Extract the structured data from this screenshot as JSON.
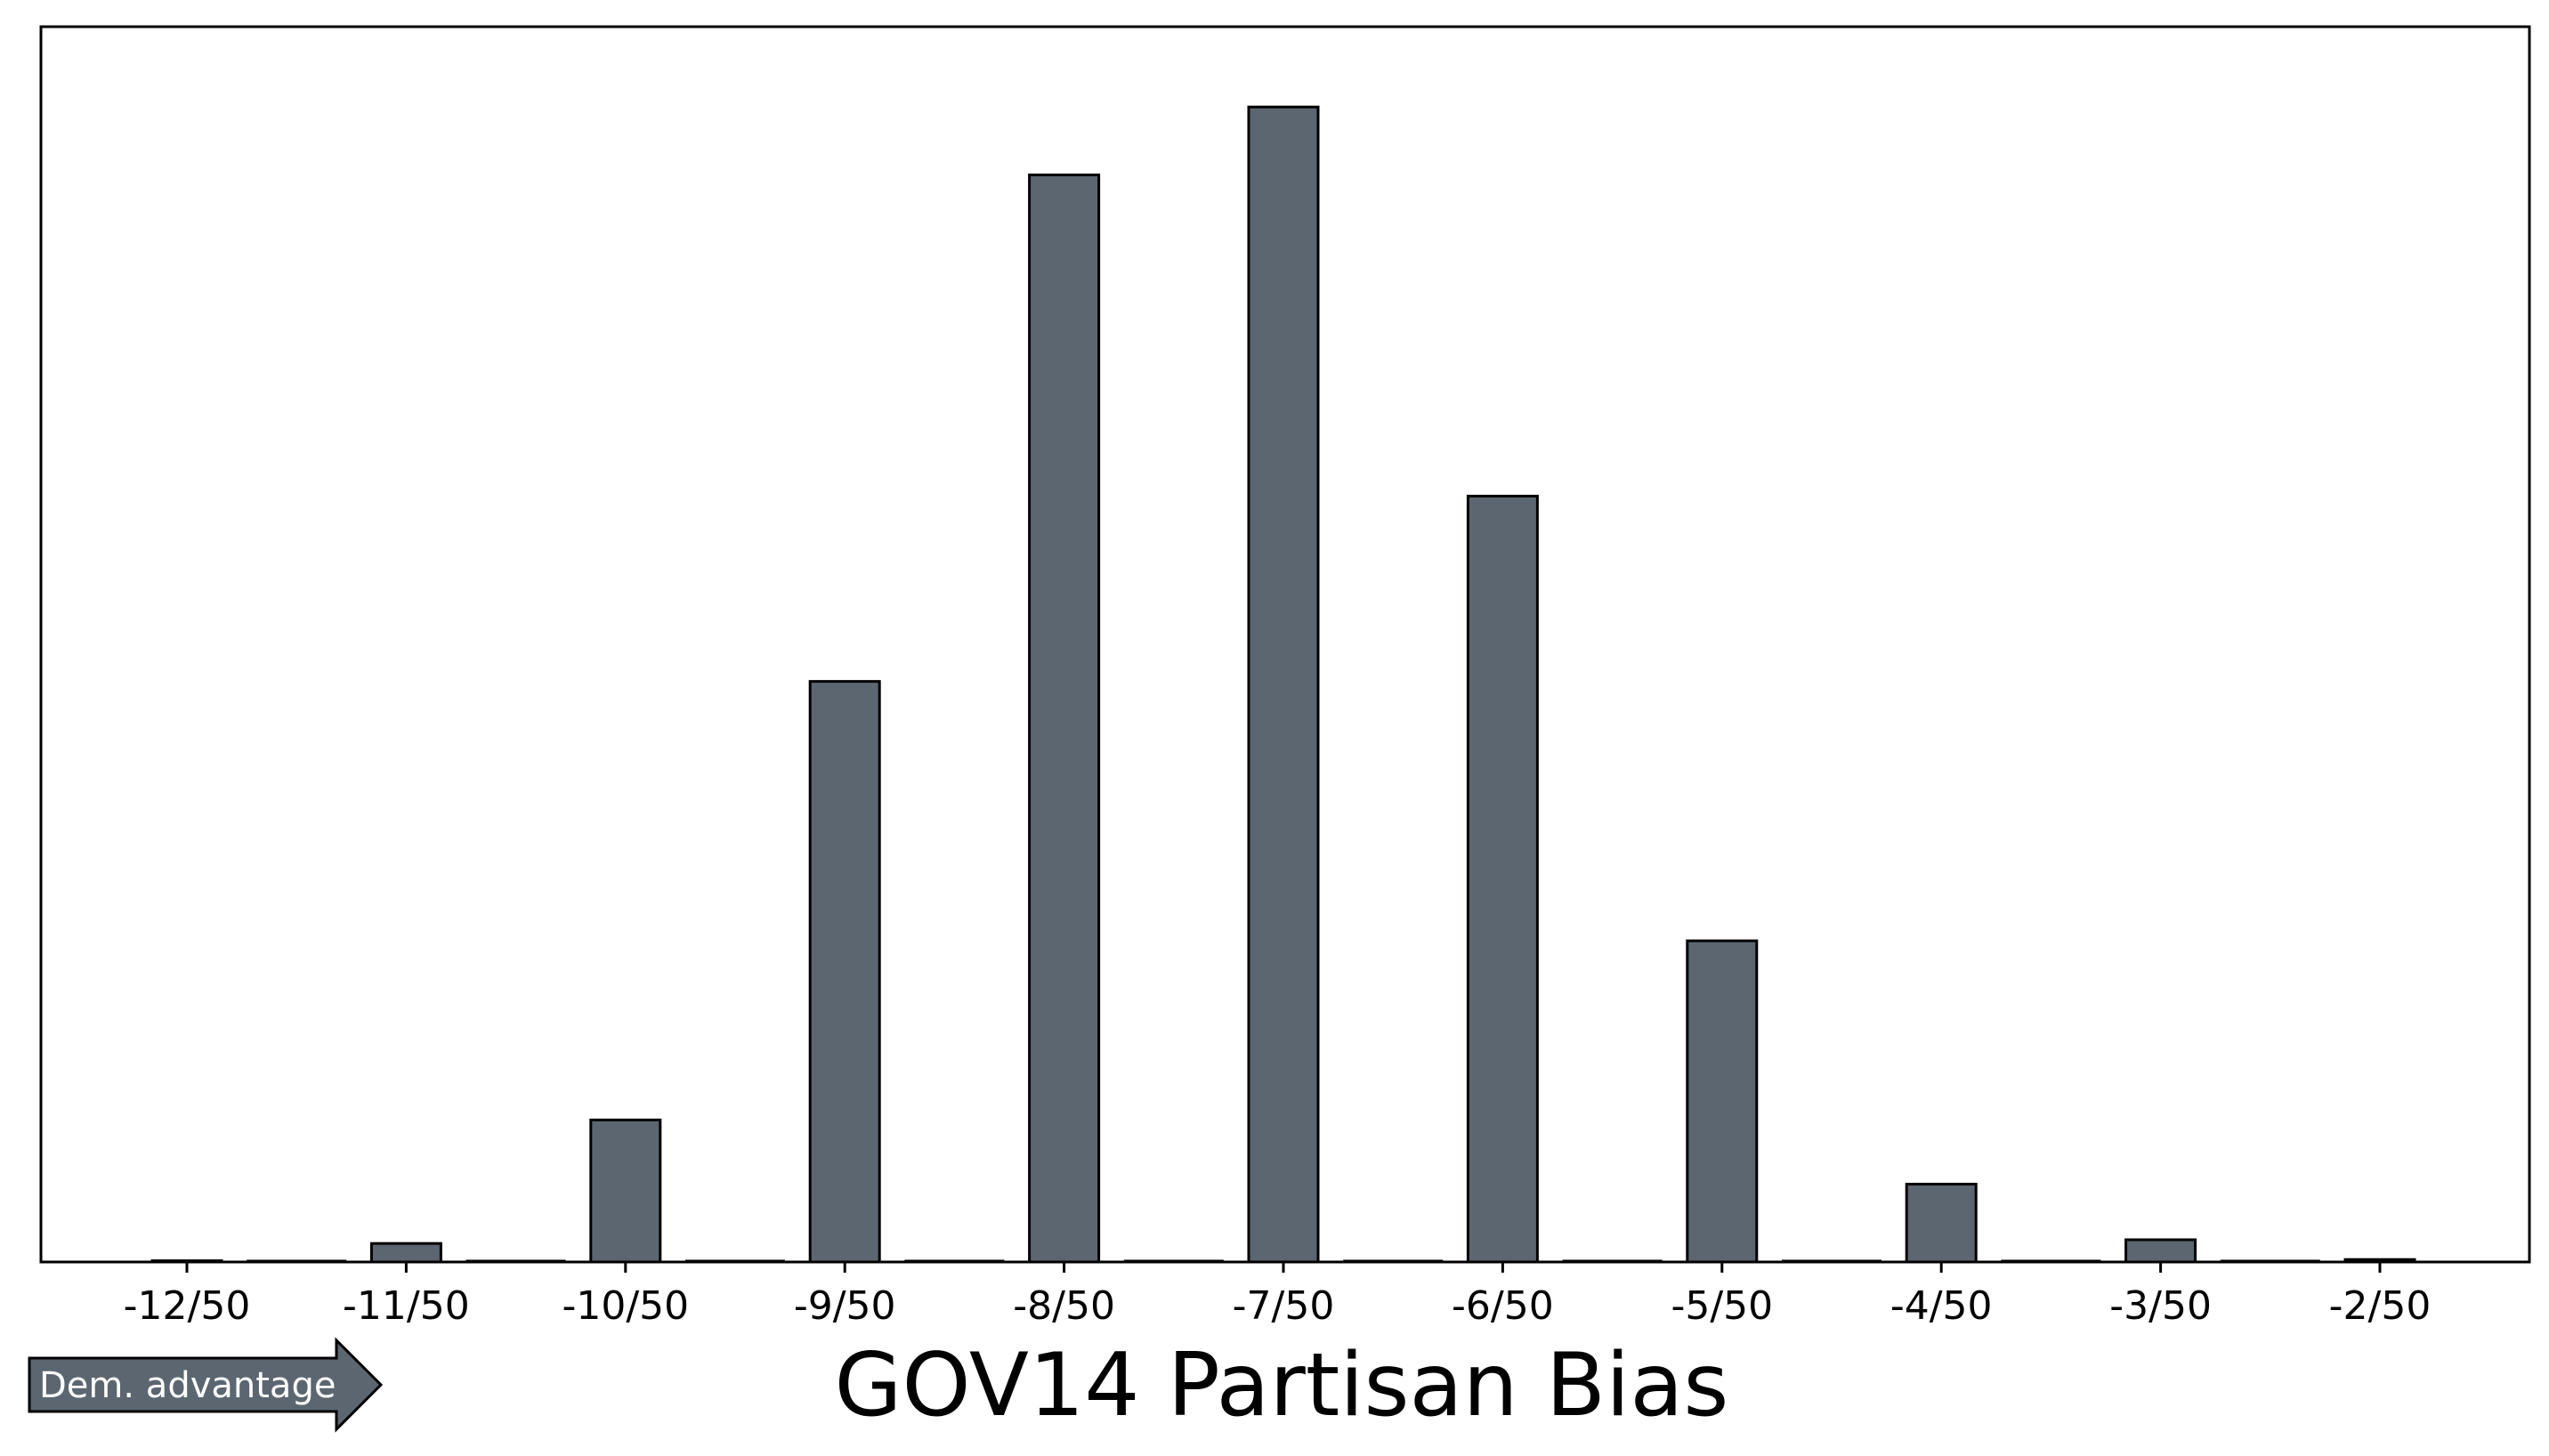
{
  "chart_data": {
    "type": "bar",
    "xlabel": "GOV14 Partisan Bias",
    "ylabel": "",
    "categories": [
      "-12/50",
      "-11/50",
      "-10/50",
      "-9/50",
      "-8/50",
      "-7/50",
      "-6/50",
      "-5/50",
      "-4/50",
      "-3/50",
      "-2/50"
    ],
    "values": [
      0.1,
      1.5,
      11.5,
      47,
      88,
      93.5,
      62,
      26,
      6.3,
      1.8,
      0.2
    ],
    "ylim": [
      0,
      100
    ],
    "y_ticks_shown": false,
    "grid": false,
    "legend": "none",
    "bar_color": "#5c6670",
    "edge_color": "#000000"
  },
  "annotation": {
    "arrow_label": "Dem. advantage",
    "arrow_color": "#5c6670"
  }
}
